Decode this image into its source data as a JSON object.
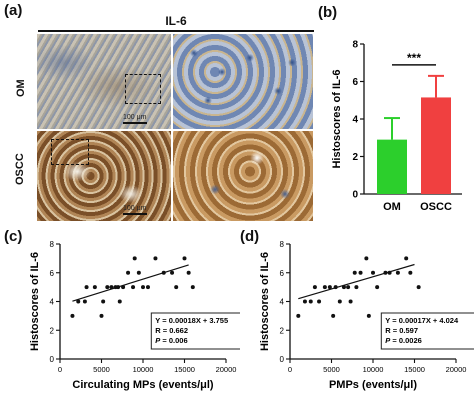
{
  "panels": {
    "a": {
      "label": "(a)",
      "title": "IL-6",
      "row_labels": [
        "OM",
        "OSCC"
      ],
      "scale_bar": "100 μm"
    },
    "b": {
      "label": "(b)"
    },
    "c": {
      "label": "(c)"
    },
    "d": {
      "label": "(d)"
    }
  },
  "colors": {
    "om_bar": "#2ccf2c",
    "oscc_bar": "#f04040",
    "error_bar": "#2ccf2c",
    "point": "#111111",
    "stain_brown": "#8a5a2b",
    "stain_blue": "#3e5a8a"
  },
  "chart_data": [
    {
      "type": "bar",
      "categories": [
        "OM",
        "OSCC"
      ],
      "values": [
        2.9,
        5.15
      ],
      "errors": [
        1.15,
        1.15
      ],
      "ylabel": "Histoscores of IL-6",
      "ylim": [
        0,
        8
      ],
      "yticks": [
        "0",
        "2",
        "4",
        "6",
        "8"
      ],
      "significance": "***",
      "grid": false
    },
    {
      "type": "scatter",
      "xlabel": "Circulating MPs (events/μl)",
      "ylabel": "Histoscores of IL-6",
      "xlim": [
        0,
        20000
      ],
      "ylim": [
        0,
        8
      ],
      "xticks": [
        "0",
        "5000",
        "10000",
        "15000",
        "20000"
      ],
      "yticks": [
        "0",
        "2",
        "4",
        "6",
        "8"
      ],
      "points": [
        [
          1500,
          3
        ],
        [
          2200,
          4
        ],
        [
          3000,
          4
        ],
        [
          3200,
          5
        ],
        [
          4200,
          5
        ],
        [
          5200,
          4
        ],
        [
          5700,
          5
        ],
        [
          6200,
          5
        ],
        [
          6700,
          5
        ],
        [
          7000,
          5
        ],
        [
          7200,
          4
        ],
        [
          7600,
          5
        ],
        [
          8200,
          6
        ],
        [
          9000,
          7
        ],
        [
          9500,
          6
        ],
        [
          10000,
          5
        ],
        [
          10600,
          5
        ],
        [
          11500,
          7
        ],
        [
          12500,
          6
        ],
        [
          13500,
          6
        ],
        [
          14000,
          5
        ],
        [
          15000,
          7
        ],
        [
          15500,
          6
        ],
        [
          16000,
          5
        ],
        [
          5000,
          3
        ],
        [
          8800,
          5
        ]
      ],
      "fit": {
        "slope": 0.00018,
        "intercept": 3.755,
        "x_range": [
          1500,
          15500
        ]
      },
      "annotation": {
        "equation": "Y = 0.00018X + 3.755",
        "r": "R = 0.662",
        "p_label": "P",
        "p_value": " = 0.006"
      },
      "grid": false
    },
    {
      "type": "scatter",
      "xlabel": "PMPs (events/μl)",
      "ylabel": "Histoscores of IL-6",
      "xlim": [
        0,
        20000
      ],
      "ylim": [
        0,
        8
      ],
      "xticks": [
        "0",
        "5000",
        "10000",
        "15000",
        "20000"
      ],
      "yticks": [
        "0",
        "2",
        "4",
        "6",
        "8"
      ],
      "points": [
        [
          1000,
          3
        ],
        [
          1800,
          4
        ],
        [
          2500,
          4
        ],
        [
          3000,
          5
        ],
        [
          3500,
          4
        ],
        [
          4200,
          5
        ],
        [
          4800,
          5
        ],
        [
          5500,
          5
        ],
        [
          6000,
          4
        ],
        [
          6500,
          5
        ],
        [
          7000,
          5
        ],
        [
          7300,
          4
        ],
        [
          7800,
          6
        ],
        [
          8500,
          6
        ],
        [
          9200,
          7
        ],
        [
          10000,
          6
        ],
        [
          10500,
          5
        ],
        [
          11500,
          6
        ],
        [
          12000,
          6
        ],
        [
          13000,
          6
        ],
        [
          14000,
          7
        ],
        [
          14500,
          6
        ],
        [
          15500,
          5
        ],
        [
          9500,
          3
        ],
        [
          5200,
          3
        ],
        [
          8000,
          5
        ]
      ],
      "fit": {
        "slope": 0.00017,
        "intercept": 4.024,
        "x_range": [
          1000,
          15000
        ]
      },
      "annotation": {
        "equation": "Y = 0.00017X + 4.024",
        "r": "R = 0.597",
        "p_label": "P",
        "p_value": " = 0.0026"
      },
      "grid": false
    }
  ]
}
